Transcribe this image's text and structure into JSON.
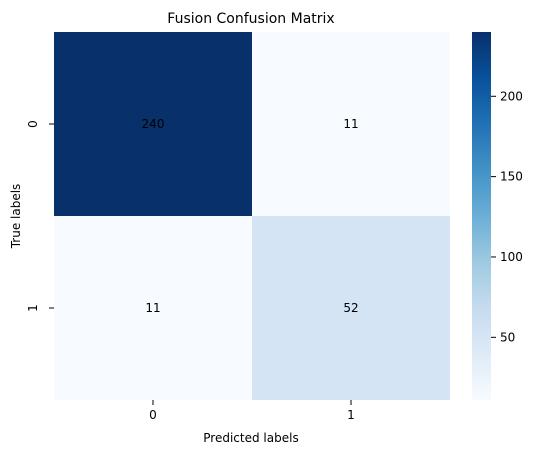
{
  "chart_data": {
    "type": "heatmap",
    "title": "Fusion Confusion Matrix",
    "xlabel": "Predicted labels",
    "ylabel": "True labels",
    "x_categories": [
      "0",
      "1"
    ],
    "y_categories": [
      "0",
      "1"
    ],
    "values": [
      [
        240,
        11
      ],
      [
        11,
        52
      ]
    ],
    "annotations": [
      [
        "240",
        "11"
      ],
      [
        "11",
        "52"
      ]
    ],
    "colorscale": {
      "name": "Blues",
      "min": 11,
      "max": 240,
      "ticks": [
        50,
        100,
        150,
        200
      ],
      "colors": {
        "low": "#f7fbff",
        "high": "#08306b"
      }
    }
  }
}
